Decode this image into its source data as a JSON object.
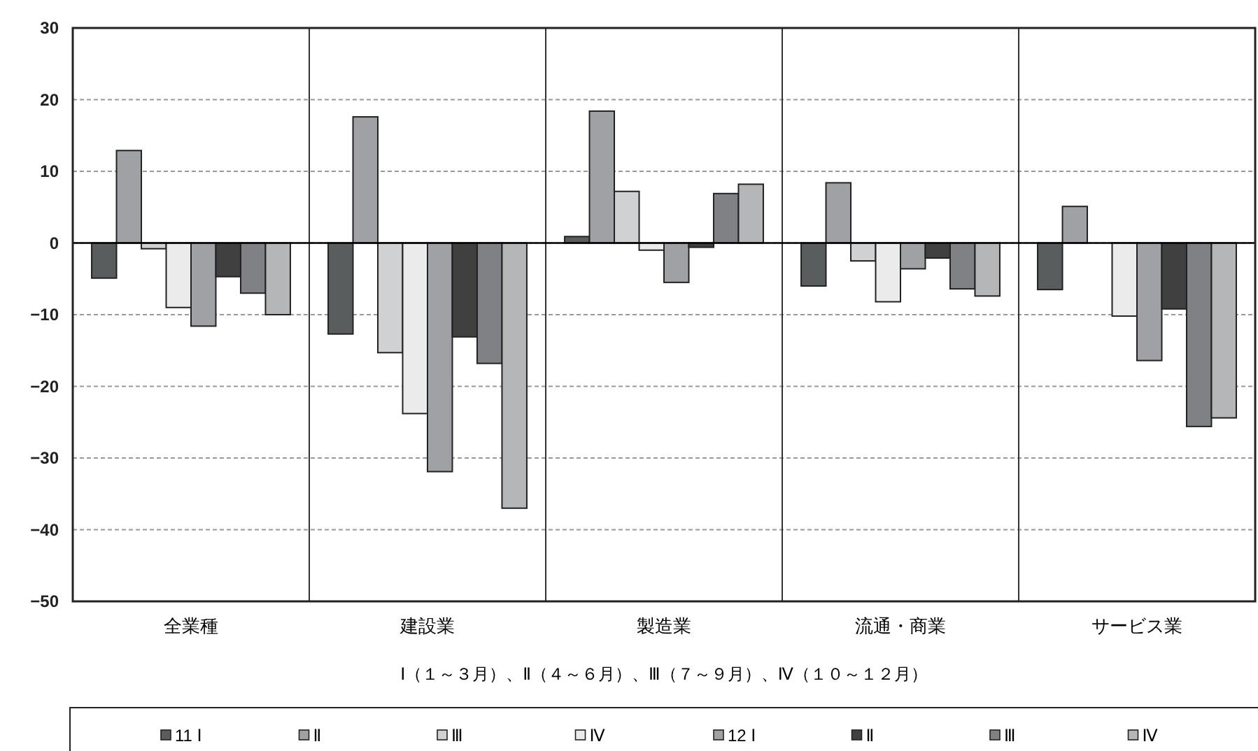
{
  "chart_data": {
    "type": "bar",
    "categories": [
      "全業種",
      "建設業",
      "製造業",
      "流通・商業",
      "サービス業"
    ],
    "xlabel": "Ⅰ（１～３月）、Ⅱ（４～６月）、Ⅲ（７～９月）、Ⅳ（１０～１２月）",
    "ylim": [
      -50,
      30
    ],
    "yticks": [
      {
        "value": -50,
        "label": "−50"
      },
      {
        "value": -40,
        "label": "−40"
      },
      {
        "value": -30,
        "label": "−30"
      },
      {
        "value": -20,
        "label": "−20"
      },
      {
        "value": -10,
        "label": "−10"
      },
      0,
      10,
      20,
      30
    ],
    "grid": "y",
    "legend": "bottom",
    "series": [
      {
        "name": "11 Ⅰ",
        "color": "#595d5d",
        "values": [
          -4.9,
          -12.7,
          0.9,
          -6.0,
          -6.5
        ]
      },
      {
        "name": "Ⅱ",
        "color": "#a0a1a5",
        "values": [
          12.9,
          17.6,
          18.4,
          8.4,
          5.1
        ]
      },
      {
        "name": "Ⅲ",
        "color": "#d0d1d3",
        "values": [
          -0.8,
          -15.3,
          7.2,
          -2.5,
          null
        ]
      },
      {
        "name": "Ⅳ",
        "color": "#ebebeb",
        "values": [
          -9.0,
          -23.8,
          -1.0,
          -8.2,
          -10.2
        ]
      },
      {
        "name": "12 Ⅰ",
        "color": "#a0a1a5",
        "values": [
          -11.6,
          -31.9,
          -5.5,
          -3.6,
          -16.4
        ]
      },
      {
        "name": "Ⅱ",
        "color": "#404040",
        "values": [
          -4.7,
          -13.1,
          -0.6,
          -2.1,
          -9.2
        ]
      },
      {
        "name": "Ⅲ",
        "color": "#808184",
        "values": [
          -7.0,
          -16.8,
          6.9,
          -6.4,
          -25.6
        ]
      },
      {
        "name": "Ⅳ",
        "color": "#b5b6b8",
        "values": [
          -10.0,
          -37.0,
          8.2,
          -7.4,
          -24.4
        ]
      }
    ]
  }
}
